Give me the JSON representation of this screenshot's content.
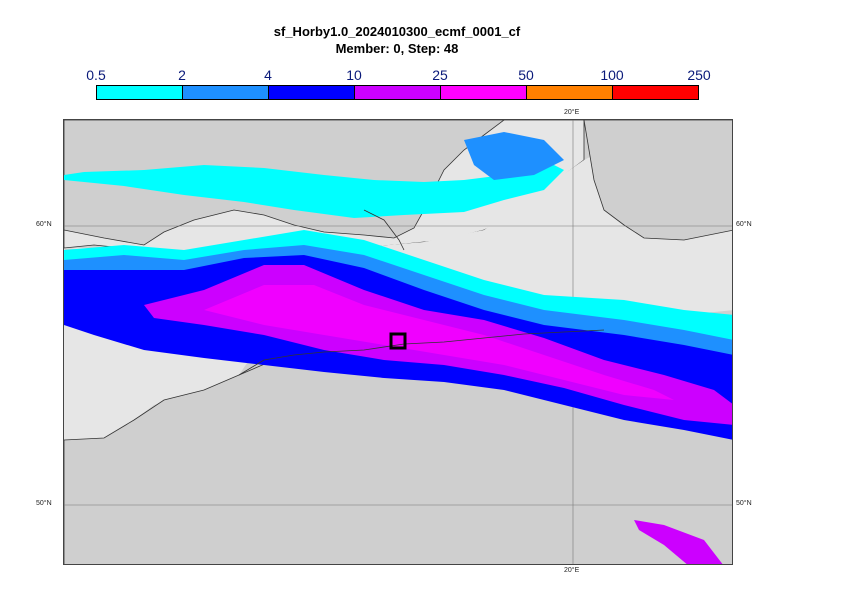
{
  "title": {
    "line1": "sf_Horby1.0_2024010300_ecmf_0001_cf",
    "line2": "Member: 0, Step: 48"
  },
  "legend": {
    "levels": [
      "0.5",
      "2",
      "4",
      "10",
      "25",
      "50",
      "100",
      "250"
    ],
    "colors": [
      "#00ffff",
      "#1e90ff",
      "#0000ff",
      "#cc00ff",
      "#ff00ff",
      "#ff8000",
      "#ff0000"
    ]
  },
  "map": {
    "lat_labels": [
      "60°N",
      "50°N"
    ],
    "lon_labels": [
      "20°E"
    ],
    "marker": "square-marker",
    "colors": {
      "land": "#cfcfcf",
      "sea": "#e6e6e6",
      "coast": "#333333"
    }
  }
}
